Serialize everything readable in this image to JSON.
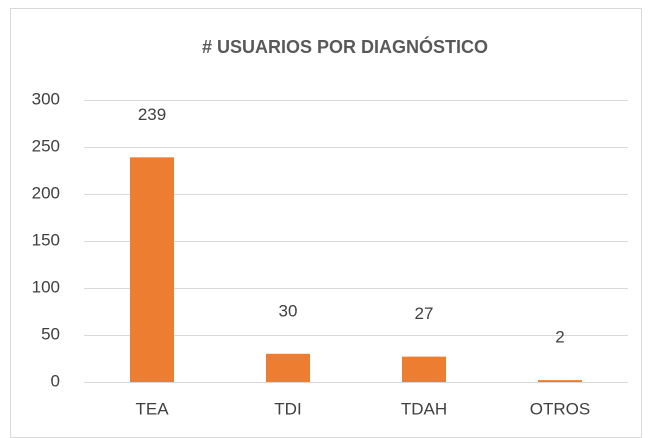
{
  "chart_data": {
    "type": "bar",
    "title": "# USUARIOS POR DIAGNÓSTICO",
    "categories": [
      "TEA",
      "TDI",
      "TDAH",
      "OTROS"
    ],
    "values": [
      239,
      30,
      27,
      2
    ],
    "color": "#ed7d31",
    "ylim": [
      0,
      300
    ],
    "yticks": [
      0,
      50,
      100,
      150,
      200,
      250,
      300
    ],
    "grid": true,
    "data_labels": true
  }
}
